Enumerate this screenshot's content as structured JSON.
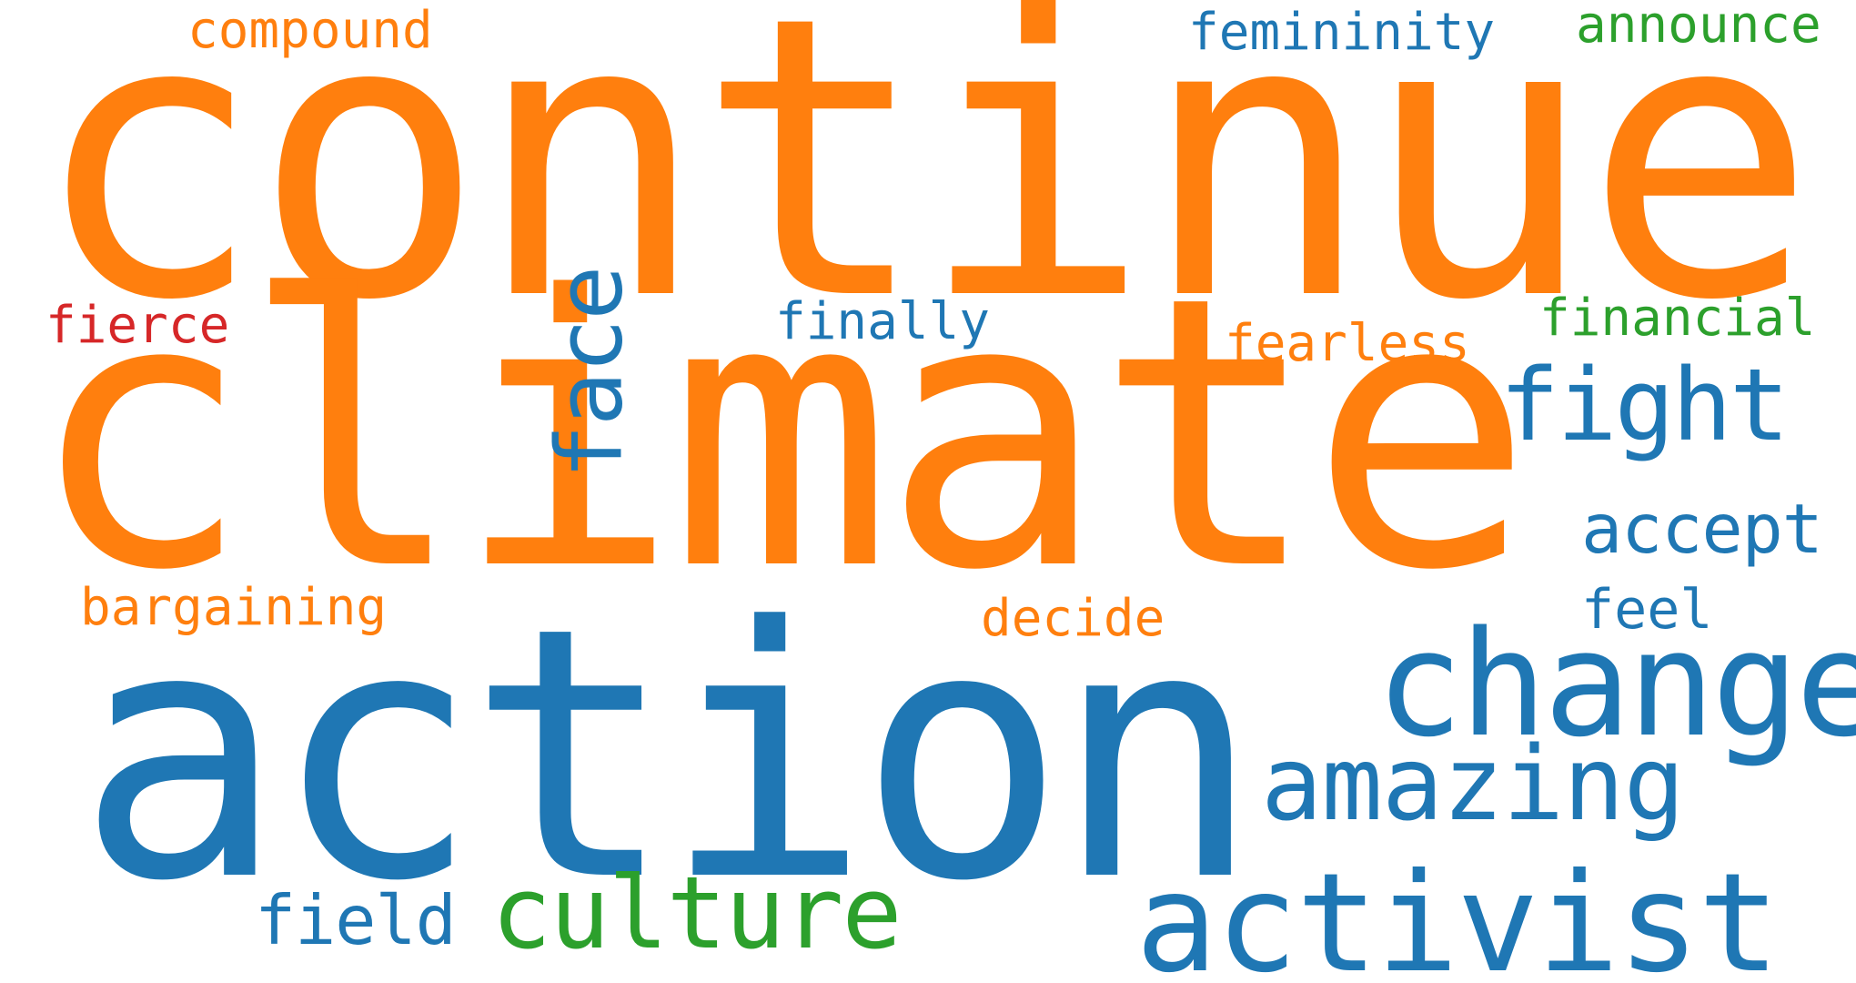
{
  "palette": {
    "orange": "#ff7f0e",
    "blue": "#1f77b4",
    "green": "#2ca02c",
    "red": "#d62728"
  },
  "words": [
    {
      "text": "continue",
      "color": "#ff7f0e"
    },
    {
      "text": "climate",
      "color": "#ff7f0e"
    },
    {
      "text": "action",
      "color": "#1f77b4"
    },
    {
      "text": "change",
      "color": "#1f77b4"
    },
    {
      "text": "activist",
      "color": "#1f77b4"
    },
    {
      "text": "amazing",
      "color": "#1f77b4"
    },
    {
      "text": "culture",
      "color": "#2ca02c"
    },
    {
      "text": "fight",
      "color": "#1f77b4"
    },
    {
      "text": "face",
      "color": "#1f77b4"
    },
    {
      "text": "accept",
      "color": "#1f77b4"
    },
    {
      "text": "field",
      "color": "#1f77b4"
    },
    {
      "text": "feel",
      "color": "#1f77b4"
    },
    {
      "text": "decide",
      "color": "#ff7f0e"
    },
    {
      "text": "bargaining",
      "color": "#ff7f0e"
    },
    {
      "text": "fearless",
      "color": "#ff7f0e"
    },
    {
      "text": "finally",
      "color": "#1f77b4"
    },
    {
      "text": "financial",
      "color": "#2ca02c"
    },
    {
      "text": "fierce",
      "color": "#d62728"
    },
    {
      "text": "compound",
      "color": "#ff7f0e"
    },
    {
      "text": "femininity",
      "color": "#1f77b4"
    },
    {
      "text": "announce",
      "color": "#2ca02c"
    }
  ]
}
